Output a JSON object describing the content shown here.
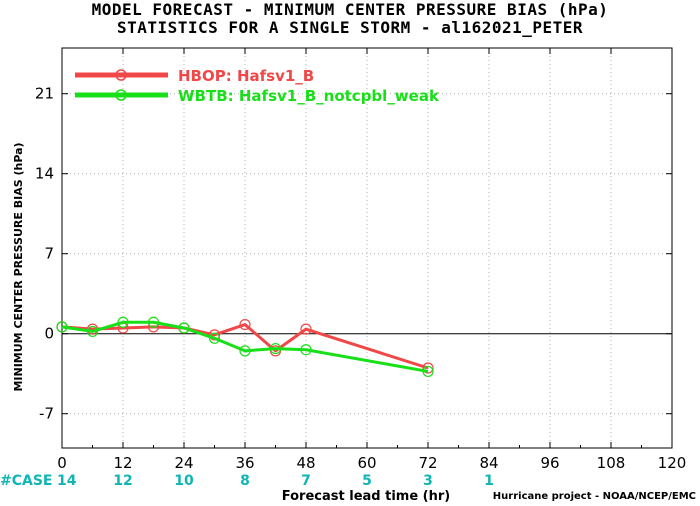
{
  "header": {
    "title_line1": "MODEL FORECAST - MINIMUM CENTER PRESSURE BIAS (hPa)",
    "title_line2": "STATISTICS FOR A SINGLE STORM - al162021_PETER"
  },
  "footer": {
    "credit": "Hurricane project - NOAA/NCEP/EMC"
  },
  "cases": {
    "label": "#CASE",
    "color": "#10b5b5",
    "x": [
      0,
      12,
      24,
      36,
      48,
      60,
      72,
      84
    ],
    "values": [
      "14",
      "12",
      "10",
      "8",
      "7",
      "5",
      "3",
      "1"
    ]
  },
  "chart_data": {
    "type": "line",
    "xlabel": "Forecast lead time (hr)",
    "ylabel": "MINIMUM CENTER PRESSURE BIAS (hPa)",
    "xlim": [
      0,
      120
    ],
    "ylim": [
      -10,
      25
    ],
    "xticks": [
      0,
      12,
      24,
      36,
      48,
      60,
      72,
      84,
      96,
      108,
      120
    ],
    "yticks": [
      -7,
      0,
      7,
      14,
      21
    ],
    "grid": true,
    "legend_position": "top-left",
    "series": [
      {
        "name": "HBOP: Hafsv1_B",
        "color": "#f04848",
        "x": [
          0,
          6,
          12,
          18,
          24,
          30,
          36,
          42,
          48,
          72
        ],
        "y": [
          0.6,
          0.4,
          0.5,
          0.6,
          0.5,
          -0.1,
          0.8,
          -1.5,
          0.4,
          -3.0
        ]
      },
      {
        "name": "WBTB: Hafsv1_B_notcpbl_weak",
        "color": "#18e018",
        "x": [
          0,
          6,
          12,
          18,
          24,
          30,
          36,
          42,
          48,
          72
        ],
        "y": [
          0.6,
          0.2,
          1.0,
          1.0,
          0.5,
          -0.4,
          -1.5,
          -1.3,
          -1.4,
          -3.3
        ]
      }
    ]
  }
}
